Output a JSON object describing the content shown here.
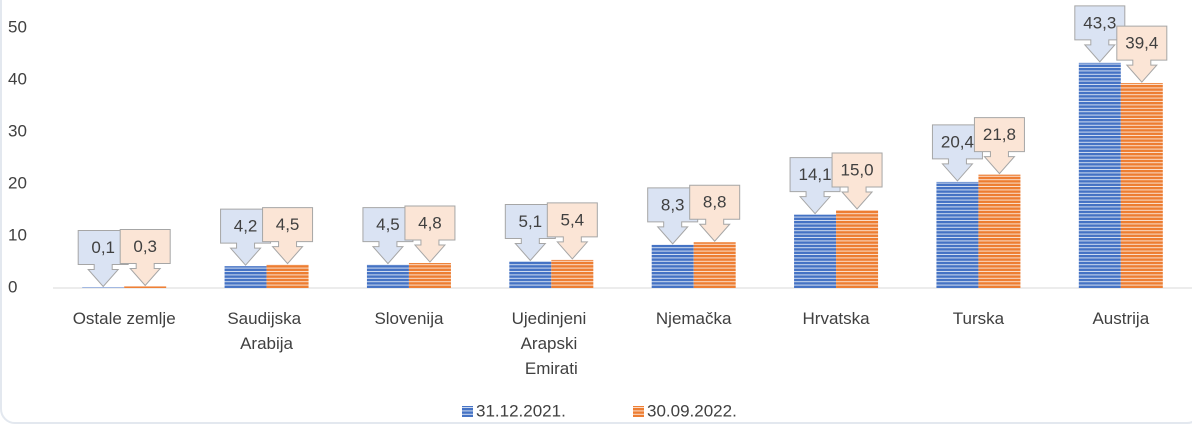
{
  "chart_data": {
    "type": "bar",
    "categories": [
      "Ostale zemlje",
      "Saudijska Arabija",
      "Slovenija",
      "Ujedinjeni Arapski Emirati",
      "Njemačka",
      "Hrvatska",
      "Turska",
      "Austrija"
    ],
    "series": [
      {
        "name": "31.12.2021.",
        "color": "#4472c4",
        "values": [
          0.1,
          4.2,
          4.5,
          5.1,
          8.3,
          14.1,
          20.4,
          43.3
        ],
        "value_labels": [
          "0,1",
          "4,2",
          "4,5",
          "5,1",
          "8,3",
          "14,1",
          "20,4",
          "43,3"
        ]
      },
      {
        "name": "30.09.2022.",
        "color": "#ed7d31",
        "values": [
          0.3,
          4.5,
          4.8,
          5.4,
          8.8,
          15.0,
          21.8,
          39.4
        ],
        "value_labels": [
          "0,3",
          "4,5",
          "4,8",
          "5,4",
          "8,8",
          "15,0",
          "21,8",
          "39,4"
        ]
      }
    ],
    "ylim": [
      0,
      50
    ],
    "yticks": [
      0,
      10,
      20,
      30,
      40,
      50
    ],
    "grid": false,
    "legend": "bottom"
  }
}
